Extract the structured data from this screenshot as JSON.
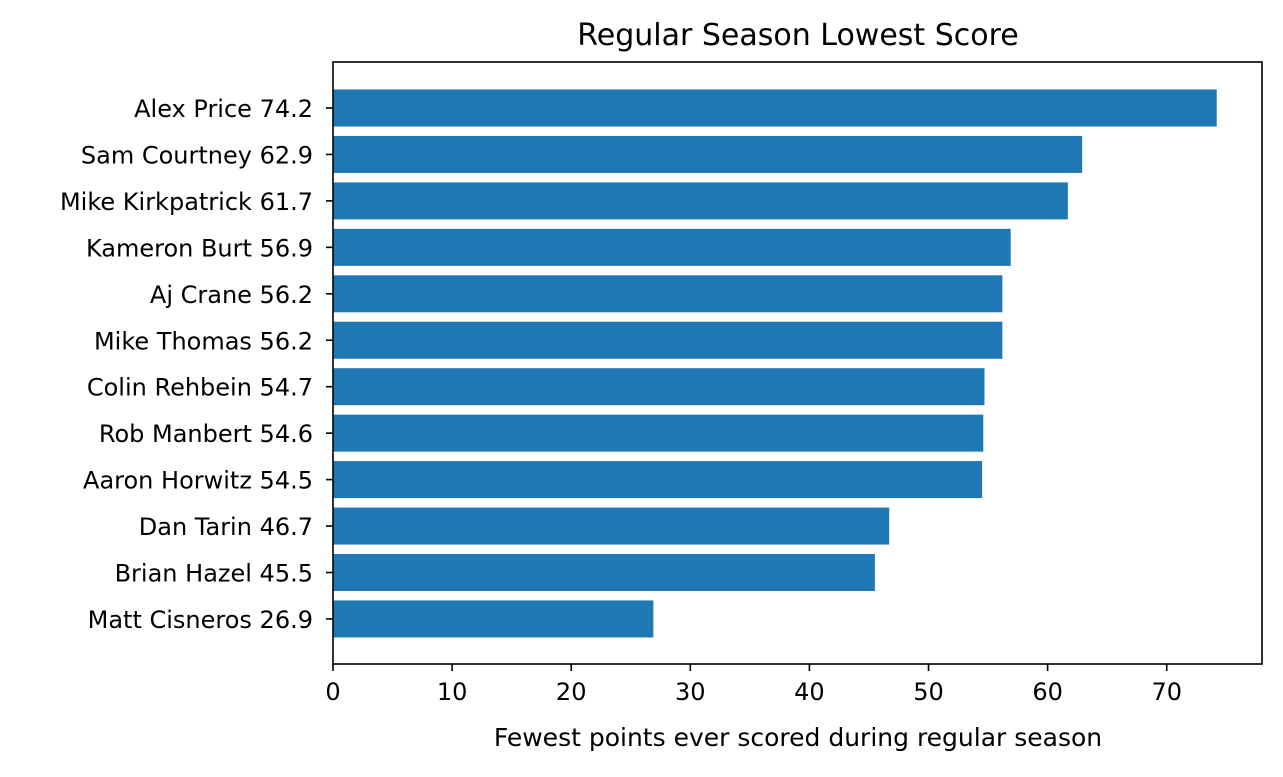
{
  "chart_data": {
    "type": "bar",
    "orientation": "horizontal",
    "title": "Regular Season Lowest Score",
    "xlabel": "Fewest points ever scored during regular season",
    "ylabel": "",
    "xlim": [
      0,
      78
    ],
    "xticks": [
      0,
      10,
      20,
      30,
      40,
      50,
      60,
      70
    ],
    "grid": false,
    "bar_color": "#1f77b4",
    "categories": [
      "Alex Price 74.2",
      "Sam Courtney 62.9",
      "Mike Kirkpatrick 61.7",
      "Kameron Burt 56.9",
      "Aj Crane 56.2",
      "Mike Thomas 56.2",
      "Colin Rehbein 54.7",
      "Rob Manbert 54.6",
      "Aaron Horwitz 54.5",
      "Dan Tarin 46.7",
      "Brian Hazel 45.5",
      "Matt Cisneros 26.9"
    ],
    "values": [
      74.2,
      62.9,
      61.7,
      56.9,
      56.2,
      56.2,
      54.7,
      54.6,
      54.5,
      46.7,
      45.5,
      26.9
    ]
  }
}
